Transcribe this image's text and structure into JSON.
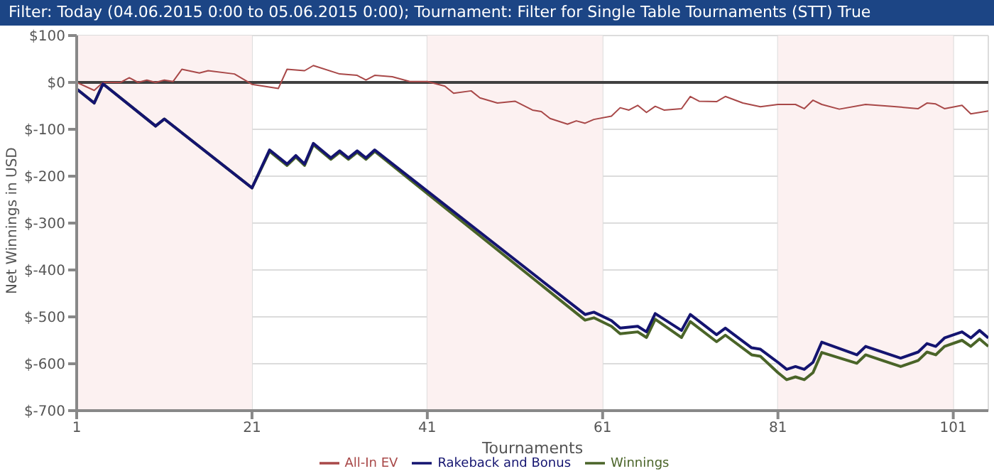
{
  "chart_data": {
    "type": "line",
    "title": "Filter: Today (04.06.2015 0:00 to 05.06.2015 0:00); Tournament: Filter for Single Table Tournaments (STT) True",
    "xlabel": "Tournaments",
    "ylabel": "Net Winnings in USD",
    "xlim": [
      1,
      105
    ],
    "xticks": [
      1,
      21,
      41,
      61,
      81,
      101
    ],
    "ylim": [
      -700,
      100
    ],
    "yticks": [
      {
        "value": -700,
        "label": "$-700"
      },
      {
        "value": -600,
        "label": "$-600"
      },
      {
        "value": -500,
        "label": "$-500"
      },
      {
        "value": -400,
        "label": "$-400"
      },
      {
        "value": -300,
        "label": "$-300"
      },
      {
        "value": -200,
        "label": "$-200"
      },
      {
        "value": -100,
        "label": "$-100"
      },
      {
        "value": 0,
        "label": "$0"
      },
      {
        "value": 100,
        "label": "$100"
      }
    ],
    "grid": true,
    "legend": "bottom",
    "bands": [
      {
        "axis": "x",
        "from": 1,
        "to": 21,
        "color": "#fcf1f1"
      },
      {
        "axis": "x",
        "from": 41,
        "to": 61,
        "color": "#fcf1f1"
      },
      {
        "axis": "x",
        "from": 81,
        "to": 101,
        "color": "#fcf1f1"
      }
    ],
    "ref_lines": [
      {
        "axis": "y",
        "value": 0,
        "color": "#404040"
      }
    ],
    "series": [
      {
        "name": "Winnings",
        "color": "#4a6428",
        "x": [
          1,
          3,
          4,
          10,
          11,
          21,
          23,
          25,
          26,
          27,
          28,
          30,
          31,
          32,
          33,
          34,
          35,
          59,
          60,
          62,
          63,
          65,
          66,
          67,
          70,
          71,
          74,
          75,
          78,
          79,
          81,
          82,
          83,
          84,
          85,
          86,
          90,
          91,
          95,
          97,
          98,
          99,
          100,
          102,
          103,
          104,
          105
        ],
        "values": [
          -14,
          -44,
          -3,
          -93,
          -78,
          -225,
          -147,
          -177,
          -159,
          -177,
          -133,
          -164,
          -149,
          -164,
          -149,
          -164,
          -147,
          -507,
          -502,
          -520,
          -536,
          -532,
          -544,
          -505,
          -544,
          -510,
          -553,
          -539,
          -581,
          -584,
          -619,
          -634,
          -628,
          -634,
          -619,
          -576,
          -599,
          -581,
          -606,
          -593,
          -575,
          -581,
          -563,
          -550,
          -563,
          -547,
          -563
        ]
      },
      {
        "name": "All-In EV",
        "color": "#a84848",
        "x": [
          1,
          3,
          4,
          6,
          7,
          8,
          9,
          10,
          11,
          12,
          13,
          15,
          16,
          19,
          21,
          24,
          25,
          27,
          28,
          31,
          33,
          34,
          35,
          37,
          39,
          41,
          43,
          44,
          46,
          47,
          49,
          51,
          53,
          54,
          55,
          57,
          58,
          59,
          60,
          62,
          63,
          64,
          65,
          66,
          67,
          68,
          70,
          71,
          72,
          74,
          75,
          77,
          79,
          81,
          83,
          84,
          85,
          86,
          88,
          91,
          94,
          97,
          98,
          99,
          100,
          102,
          103,
          105
        ],
        "values": [
          0,
          -17,
          0,
          0,
          10,
          0,
          5,
          0,
          5,
          2,
          28,
          20,
          25,
          18,
          -4,
          -13,
          28,
          25,
          36,
          18,
          15,
          5,
          15,
          12,
          2,
          2,
          -8,
          -23,
          -18,
          -33,
          -44,
          -40,
          -59,
          -62,
          -77,
          -89,
          -82,
          -87,
          -79,
          -72,
          -54,
          -59,
          -49,
          -64,
          -51,
          -59,
          -56,
          -30,
          -40,
          -41,
          -30,
          -44,
          -52,
          -47,
          -47,
          -56,
          -38,
          -47,
          -57,
          -47,
          -51,
          -56,
          -44,
          -46,
          -56,
          -49,
          -67,
          -61
        ]
      },
      {
        "name": "Rakeback and Bonus",
        "color": "#141470",
        "x": [
          1,
          3,
          4,
          10,
          11,
          21,
          23,
          25,
          26,
          27,
          28,
          30,
          31,
          32,
          33,
          34,
          35,
          59,
          60,
          62,
          63,
          65,
          66,
          67,
          70,
          71,
          74,
          75,
          78,
          79,
          81,
          82,
          83,
          84,
          85,
          86,
          90,
          91,
          95,
          97,
          98,
          99,
          100,
          102,
          103,
          104,
          105
        ],
        "values": [
          -14,
          -44,
          -3,
          -93,
          -78,
          -225,
          -144,
          -174,
          -156,
          -174,
          -130,
          -161,
          -146,
          -161,
          -146,
          -161,
          -144,
          -495,
          -490,
          -508,
          -524,
          -520,
          -532,
          -493,
          -529,
          -495,
          -538,
          -524,
          -566,
          -569,
          -597,
          -612,
          -606,
          -612,
          -597,
          -554,
          -581,
          -563,
          -588,
          -575,
          -557,
          -563,
          -545,
          -532,
          -545,
          -529,
          -545
        ]
      }
    ]
  }
}
